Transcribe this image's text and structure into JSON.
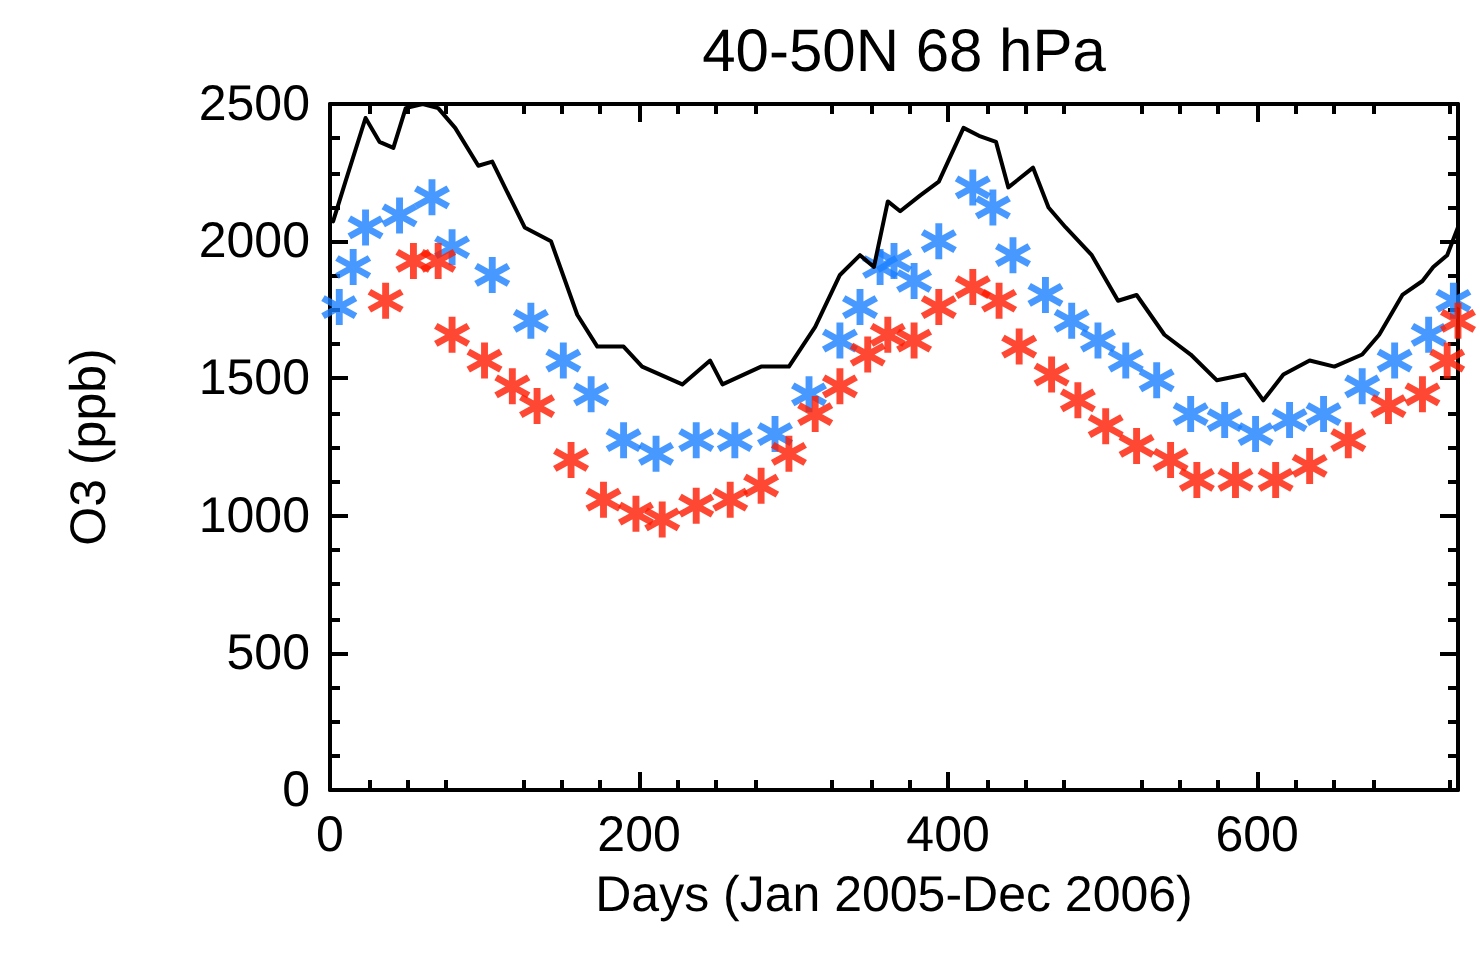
{
  "chart_data": {
    "type": "line",
    "title": "40-50N 68 hPa",
    "xlabel": "Days (Jan 2005-Dec 2006)",
    "ylabel": "O3 (ppb)",
    "xlim": [
      0,
      730
    ],
    "xticks": [
      0,
      200,
      400,
      600
    ],
    "ylim": [
      0,
      2500
    ],
    "yticks": [
      0,
      500,
      1000,
      1500,
      2000,
      2500
    ],
    "grid": false,
    "series": [
      {
        "color": "#000000",
        "marker": "none",
        "line_style": "solid",
        "x": [
          2,
          10,
          23,
          32,
          41,
          49,
          60,
          70,
          81,
          96,
          105,
          126,
          143,
          160,
          173,
          190,
          202,
          228,
          246,
          254,
          279,
          297,
          314,
          330,
          343,
          352,
          361,
          369,
          382,
          394,
          410,
          420,
          431,
          439,
          455,
          465,
          476,
          493,
          510,
          522,
          540,
          557,
          574,
          592,
          604,
          617,
          634,
          650,
          668,
          679,
          694,
          707,
          714,
          723,
          730
        ],
        "values": [
          2072,
          2217,
          2449,
          2362,
          2340,
          2485,
          2500,
          2485,
          2413,
          2275,
          2290,
          2050,
          2000,
          1732,
          1616,
          1616,
          1543,
          1478,
          1565,
          1478,
          1543,
          1543,
          1688,
          1877,
          1949,
          1906,
          2145,
          2109,
          2167,
          2217,
          2413,
          2384,
          2362,
          2196,
          2268,
          2123,
          2051,
          1949,
          1783,
          1804,
          1659,
          1587,
          1493,
          1514,
          1420,
          1514,
          1565,
          1543,
          1587,
          1659,
          1804,
          1855,
          1906,
          1949,
          2051
        ]
      },
      {
        "type": "scatter",
        "color": "#1a80ff",
        "marker": "cross",
        "x": [
          6,
          15,
          23,
          45,
          66,
          79,
          105,
          130,
          151,
          169,
          190,
          211,
          237,
          262,
          288,
          310,
          330,
          343,
          356,
          365,
          378,
          394,
          416,
          429,
          442,
          463,
          480,
          497,
          515,
          535,
          557,
          579,
          599,
          621,
          643,
          668,
          689,
          711,
          727
        ],
        "values": [
          1760,
          1906,
          2050,
          2094,
          2160,
          1978,
          1877,
          1710,
          1565,
          1442,
          1275,
          1225,
          1275,
          1275,
          1297,
          1442,
          1638,
          1760,
          1906,
          1928,
          1855,
          2000,
          2196,
          2123,
          1949,
          1804,
          1710,
          1638,
          1565,
          1493,
          1370,
          1348,
          1297,
          1348,
          1370,
          1471,
          1565,
          1659,
          1783
        ]
      },
      {
        "type": "scatter",
        "color": "#ff1a00",
        "marker": "cross",
        "x": [
          36,
          54,
          70,
          79,
          100,
          118,
          134,
          156,
          177,
          198,
          215,
          237,
          259,
          279,
          297,
          314,
          330,
          348,
          361,
          378,
          394,
          416,
          433,
          446,
          467,
          484,
          502,
          522,
          544,
          561,
          586,
          612,
          634,
          659,
          685,
          707,
          723,
          730
        ],
        "values": [
          1783,
          1928,
          1928,
          1659,
          1565,
          1471,
          1399,
          1203,
          1058,
          1007,
          986,
          1036,
          1058,
          1109,
          1225,
          1370,
          1471,
          1587,
          1659,
          1638,
          1760,
          1833,
          1783,
          1616,
          1514,
          1420,
          1326,
          1254,
          1203,
          1130,
          1130,
          1130,
          1181,
          1275,
          1399,
          1442,
          1565,
          1710
        ]
      }
    ]
  }
}
